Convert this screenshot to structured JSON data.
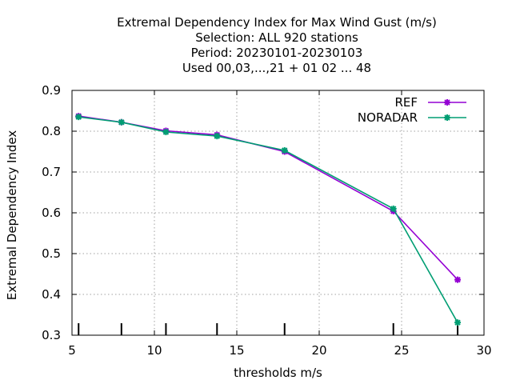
{
  "chart_data": {
    "type": "line",
    "title_lines": [
      "Extremal Dependency Index  for Max Wind Gust (m/s)",
      "Selection: ALL    920 stations",
      "Period: 20230101-20230103",
      "Used  00,03,...,21  + 01 02 ... 48"
    ],
    "xlabel": "thresholds m/s",
    "ylabel": "Extremal Dependency Index",
    "xlim": [
      5,
      30
    ],
    "ylim": [
      0.3,
      0.9
    ],
    "xticks": [
      "5",
      "10",
      "15",
      "20",
      "25",
      "30"
    ],
    "yticks": [
      "0.3",
      "0.4",
      "0.5",
      "0.6",
      "0.7",
      "0.8",
      "0.9"
    ],
    "grid": true,
    "legend_position": "top-right",
    "threshold_markers": [
      5.4,
      8,
      10.7,
      13.8,
      17.9,
      24.5,
      28.4
    ],
    "series": [
      {
        "name": "REF",
        "color": "#9400d3",
        "x": [
          5.4,
          8.0,
          10.7,
          13.8,
          17.9,
          24.5,
          28.4
        ],
        "y": [
          0.837,
          0.822,
          0.801,
          0.791,
          0.75,
          0.604,
          0.436
        ]
      },
      {
        "name": "NORADAR",
        "color": "#009e73",
        "x": [
          5.4,
          8.0,
          10.7,
          13.8,
          17.9,
          24.5,
          28.4
        ],
        "y": [
          0.835,
          0.822,
          0.798,
          0.788,
          0.753,
          0.61,
          0.331
        ]
      }
    ]
  }
}
